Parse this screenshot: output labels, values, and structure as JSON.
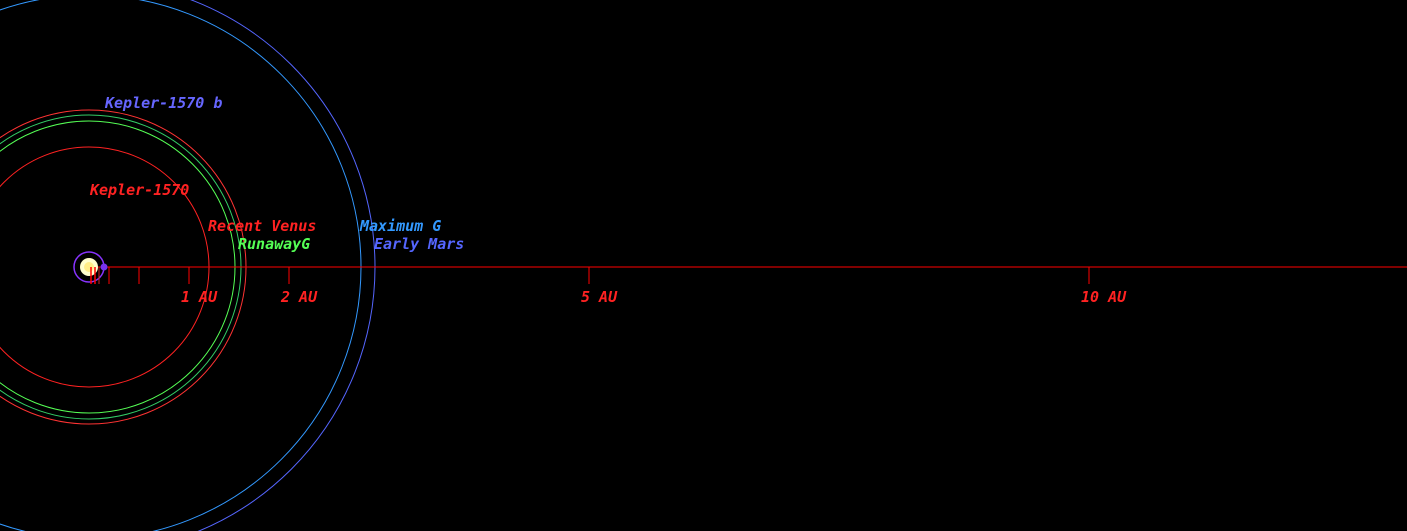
{
  "system": {
    "star_name": "Kepler-1570",
    "planet_name": "Kepler-1570 b",
    "colors": {
      "background": "#000000",
      "axis": "#ff0000",
      "star_glow": "#ffffcc",
      "star_ring": "#8833ff",
      "planet_marker": "#7733ee"
    }
  },
  "axis": {
    "unit": "AU",
    "labeled_ticks": [
      {
        "value": 1,
        "label": "1 AU"
      },
      {
        "value": 2,
        "label": "2 AU"
      },
      {
        "value": 5,
        "label": "5 AU"
      },
      {
        "value": 10,
        "label": "10 AU"
      }
    ],
    "minor_ticks": [
      0.1,
      0.2,
      0.5
    ]
  },
  "zones": [
    {
      "key": "recent_venus",
      "label": "Recent Venus",
      "radius_au": 2.4,
      "color": "#ff2222"
    },
    {
      "key": "runaway_greenhouse",
      "label": "RunawayG",
      "radius_au": 2.9,
      "color": "#55ff55"
    },
    {
      "key": "runaway_greenhouse_outer",
      "label": "",
      "radius_au": 3.0,
      "color": "#33cc66"
    },
    {
      "key": "stellar_region",
      "label": "Kepler-1570",
      "radius_au": 3.6,
      "color": "#ff3333"
    },
    {
      "key": "maximum_greenhouse",
      "label": "Maximum G",
      "radius_au": 5.4,
      "color": "#3399ff"
    },
    {
      "key": "early_mars",
      "label": "Early Mars",
      "radius_au": 5.7,
      "color": "#5566ff"
    }
  ],
  "labels": {
    "planet": {
      "text": "Kepler-1570 b",
      "color": "#6666ff"
    },
    "star": {
      "text": "Kepler-1570",
      "color": "#ff2222"
    },
    "recent_venus": {
      "text": "Recent Venus",
      "color": "#ff2222"
    },
    "runaway_greenhouse": {
      "text": "RunawayG",
      "color": "#55ff55"
    },
    "maximum_greenhouse": {
      "text": "Maximum G",
      "color": "#3399ff"
    },
    "early_mars": {
      "text": "Early Mars",
      "color": "#5566ff"
    }
  }
}
